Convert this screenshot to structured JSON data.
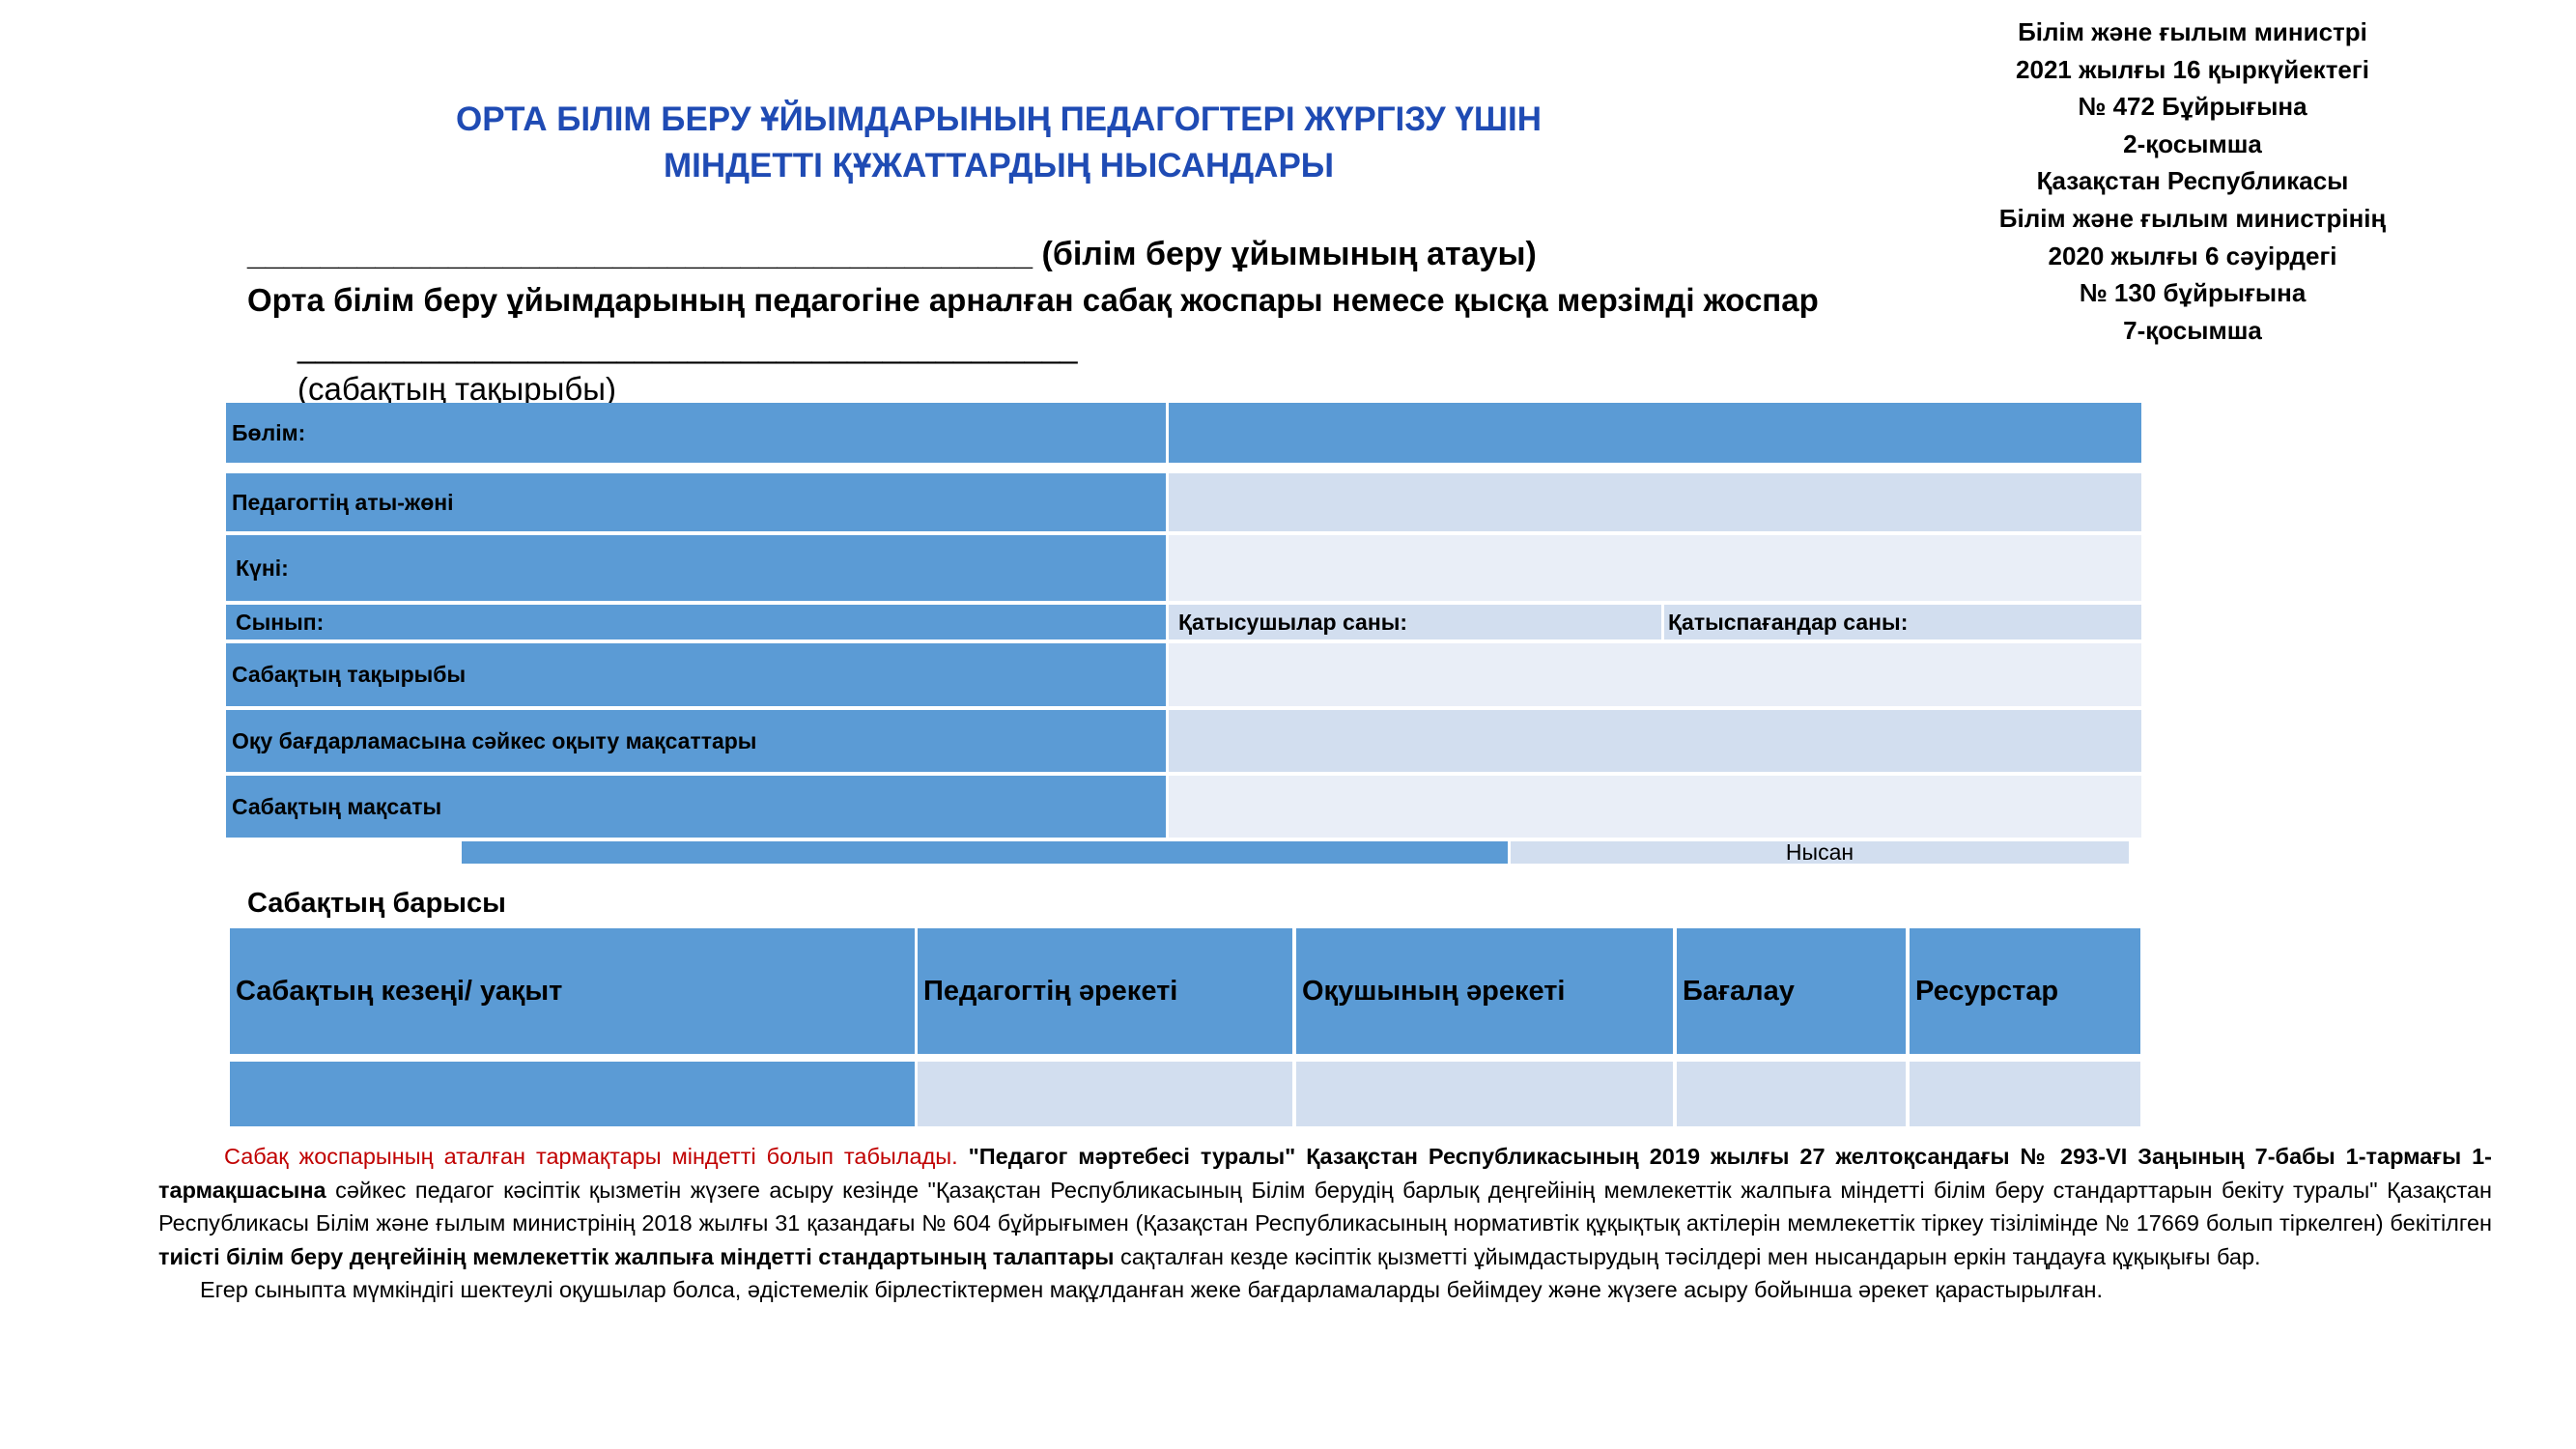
{
  "title": {
    "line1": "ОРТА БІЛІМ БЕРУ ҰЙЫМДАРЫНЫҢ ПЕДАГОГТЕРІ ЖҮРГІЗУ ҮШІН",
    "line2": "МІНДЕТТІ ҚҰЖАТТАРДЫҢ НЫСАНДАРЫ"
  },
  "approval": [
    "Білім және ғылым министрі",
    "2021 жылғы 16 қыркүйектегі",
    "№ 472 Бұйрығына",
    "2-қосымша",
    "Қазақстан Республикасы",
    "Білім және ғылым министрінің",
    "2020 жылғы 6 сәуірдегі",
    "№ 130 бұйрығына",
    "7-қосымша"
  ],
  "org_line": "___________________________________________ (білім беру ұйымының атауы)",
  "subtitle": "Орта білім беру ұйымдарының педагогіне арналған сабақ жоспары немесе қысқа мерзімді жоспар",
  "topic_blank": "____________________________________________",
  "topic_label": "(сабақтың тақырыбы)",
  "info_table": {
    "section": "Бөлім:",
    "teacher": "Педагогтің аты-жөні",
    "date": "Күні:",
    "class": "Сынып:",
    "present": "Қатысушылар саны:",
    "absent": "Қатыспағандар саны:",
    "lesson_topic": "Сабақтың тақырыбы",
    "objectives": "Оқу бағдарламасына сәйкес оқыту мақсаттары",
    "lesson_goal": "Сабақтың мақсаты",
    "form": "Нысан"
  },
  "progress_title": "Сабақтың барысы",
  "progress_table": {
    "headers": [
      "Сабақтың кезеңі/ уақыт",
      "Педагогтің әрекеті",
      "Оқушының әрекеті",
      "Бағалау",
      "Ресурстар"
    ]
  },
  "note": {
    "red": "Сабақ жоспарының аталған тармақтары міндетті болып табылады.",
    "bold1": " \"Педагог мәртебесі туралы\" Қазақстан Республикасының 2019 жылғы 27 желтоқсандағы № 293-VI Заңының 7-бабы 1-тармағы 1-тармақшасына",
    "text1": " сәйкес педагог кәсіптік қызметін жүзеге асыру кезінде \"Қазақстан Республикасының Білім берудің барлық деңгейінің мемлекеттік жалпыға міндетті білім беру стандарттарын бекіту туралы\" Қазақстан Республикасы Білім және ғылым министрінің 2018 жылғы 31 қазандағы № 604 бұйрығымен (Қазақстан Республикасының нормативтік құқықтық актілерін мемлекеттік тіркеу тізілімінде № 17669 болып тіркелген) бекітілген ",
    "bold2": "тиісті білім беру деңгейінің мемлекеттік жалпыға міндетті стандартының талаптары",
    "text2": " сақталған кезде кәсіптік қызметті ұйымдастырудың тәсілдері мен нысандарын еркін таңдауға құқықығы бар.",
    "second": "Егер сыныпта мүмкіндігі шектеулі оқушылар болса, әдістемелік бірлестіктермен мақұлданған жеке бағдарламаларды бейімдеу және жүзеге асыру бойынша әрекет қарастырылған."
  },
  "colors": {
    "title": "#1f4bb4",
    "header_blue": "#5b9bd5",
    "light": "#d2deef",
    "lighter": "#e9eef7",
    "note_red": "#c00000"
  }
}
